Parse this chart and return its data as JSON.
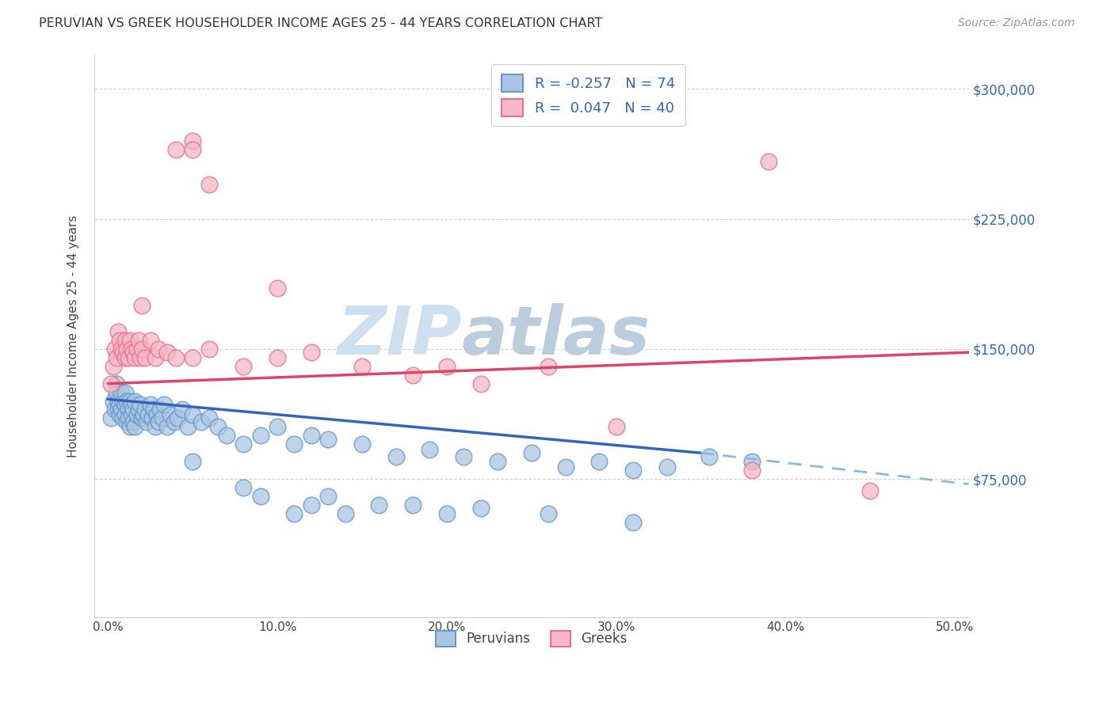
{
  "title": "PERUVIAN VS GREEK HOUSEHOLDER INCOME AGES 25 - 44 YEARS CORRELATION CHART",
  "source": "Source: ZipAtlas.com",
  "ylabel": "Householder Income Ages 25 - 44 years",
  "xlabel_ticks": [
    "0.0%",
    "10.0%",
    "20.0%",
    "30.0%",
    "40.0%",
    "50.0%"
  ],
  "xlabel_vals": [
    0.0,
    0.1,
    0.2,
    0.3,
    0.4,
    0.5
  ],
  "ylabel_ticks": [
    "$75,000",
    "$150,000",
    "$225,000",
    "$300,000"
  ],
  "ylabel_vals": [
    75000,
    150000,
    225000,
    300000
  ],
  "ylim": [
    -5000,
    320000
  ],
  "xlim": [
    -0.008,
    0.508
  ],
  "peruvian_color": "#aac5e2",
  "greek_color": "#f5b8c4",
  "peruvian_edge": "#6699cc",
  "greek_edge": "#e87090",
  "trend_peruvian_solid_color": "#3366bb",
  "trend_greek_color": "#dd4466",
  "trend_peruvian_dash_color": "#88bbdd",
  "watermark_zip_color": "#cce0f0",
  "watermark_atlas_color": "#bbccdd",
  "legend_label1": "R = -0.257   N = 74",
  "legend_label2": "R =  0.047   N = 40",
  "legend_label_color": "#3366bb",
  "peruvian_x": [
    0.002,
    0.003,
    0.004,
    0.005,
    0.005,
    0.006,
    0.006,
    0.007,
    0.007,
    0.008,
    0.008,
    0.009,
    0.009,
    0.01,
    0.01,
    0.01,
    0.011,
    0.011,
    0.012,
    0.012,
    0.013,
    0.013,
    0.014,
    0.014,
    0.015,
    0.015,
    0.016,
    0.016,
    0.017,
    0.018,
    0.019,
    0.02,
    0.021,
    0.022,
    0.023,
    0.024,
    0.025,
    0.026,
    0.027,
    0.028,
    0.029,
    0.03,
    0.031,
    0.032,
    0.033,
    0.035,
    0.037,
    0.039,
    0.041,
    0.044,
    0.047,
    0.05,
    0.055,
    0.06,
    0.065,
    0.07,
    0.08,
    0.09,
    0.1,
    0.11,
    0.12,
    0.13,
    0.15,
    0.17,
    0.19,
    0.21,
    0.23,
    0.25,
    0.27,
    0.29,
    0.31,
    0.33,
    0.355,
    0.38
  ],
  "peruvian_y": [
    110000,
    120000,
    115000,
    130000,
    125000,
    120000,
    115000,
    118000,
    112000,
    125000,
    115000,
    120000,
    110000,
    125000,
    118000,
    112000,
    120000,
    108000,
    115000,
    110000,
    120000,
    105000,
    118000,
    112000,
    115000,
    108000,
    120000,
    105000,
    112000,
    115000,
    118000,
    110000,
    112000,
    115000,
    108000,
    112000,
    118000,
    110000,
    115000,
    105000,
    112000,
    108000,
    115000,
    110000,
    118000,
    105000,
    112000,
    108000,
    110000,
    115000,
    105000,
    112000,
    108000,
    110000,
    105000,
    100000,
    95000,
    100000,
    105000,
    95000,
    100000,
    98000,
    95000,
    88000,
    92000,
    88000,
    85000,
    90000,
    82000,
    85000,
    80000,
    82000,
    88000,
    85000
  ],
  "greek_x": [
    0.002,
    0.003,
    0.004,
    0.005,
    0.006,
    0.007,
    0.008,
    0.009,
    0.01,
    0.01,
    0.011,
    0.012,
    0.013,
    0.014,
    0.015,
    0.016,
    0.017,
    0.018,
    0.019,
    0.02,
    0.022,
    0.025,
    0.028,
    0.03,
    0.035,
    0.04,
    0.05,
    0.06,
    0.08,
    0.1,
    0.12,
    0.15,
    0.18,
    0.2,
    0.22,
    0.26,
    0.3,
    0.38,
    0.45,
    0.02
  ],
  "greek_y": [
    130000,
    140000,
    150000,
    145000,
    160000,
    155000,
    150000,
    148000,
    155000,
    145000,
    150000,
    145000,
    155000,
    150000,
    148000,
    145000,
    150000,
    155000,
    145000,
    150000,
    145000,
    155000,
    145000,
    150000,
    148000,
    145000,
    145000,
    150000,
    140000,
    145000,
    148000,
    140000,
    135000,
    140000,
    130000,
    140000,
    105000,
    80000,
    68000,
    175000
  ],
  "greek_high_x": [
    0.04,
    0.05,
    0.05,
    0.06,
    0.1,
    0.39
  ],
  "greek_high_y": [
    265000,
    270000,
    265000,
    245000,
    185000,
    258000
  ],
  "peruvian_low_x": [
    0.05,
    0.08,
    0.09,
    0.11,
    0.12,
    0.13,
    0.14,
    0.16,
    0.18,
    0.2,
    0.22,
    0.26,
    0.31
  ],
  "peruvian_low_y": [
    85000,
    70000,
    65000,
    55000,
    60000,
    65000,
    55000,
    60000,
    60000,
    55000,
    58000,
    55000,
    50000
  ],
  "trend_p_x0": 0.0,
  "trend_p_y0": 121000,
  "trend_p_x1": 0.35,
  "trend_p_y1": 90000,
  "trend_p_dash_x1": 0.508,
  "trend_p_dash_y1": 72000,
  "trend_g_x0": 0.0,
  "trend_g_y0": 130000,
  "trend_g_x1": 0.508,
  "trend_g_y1": 148000
}
